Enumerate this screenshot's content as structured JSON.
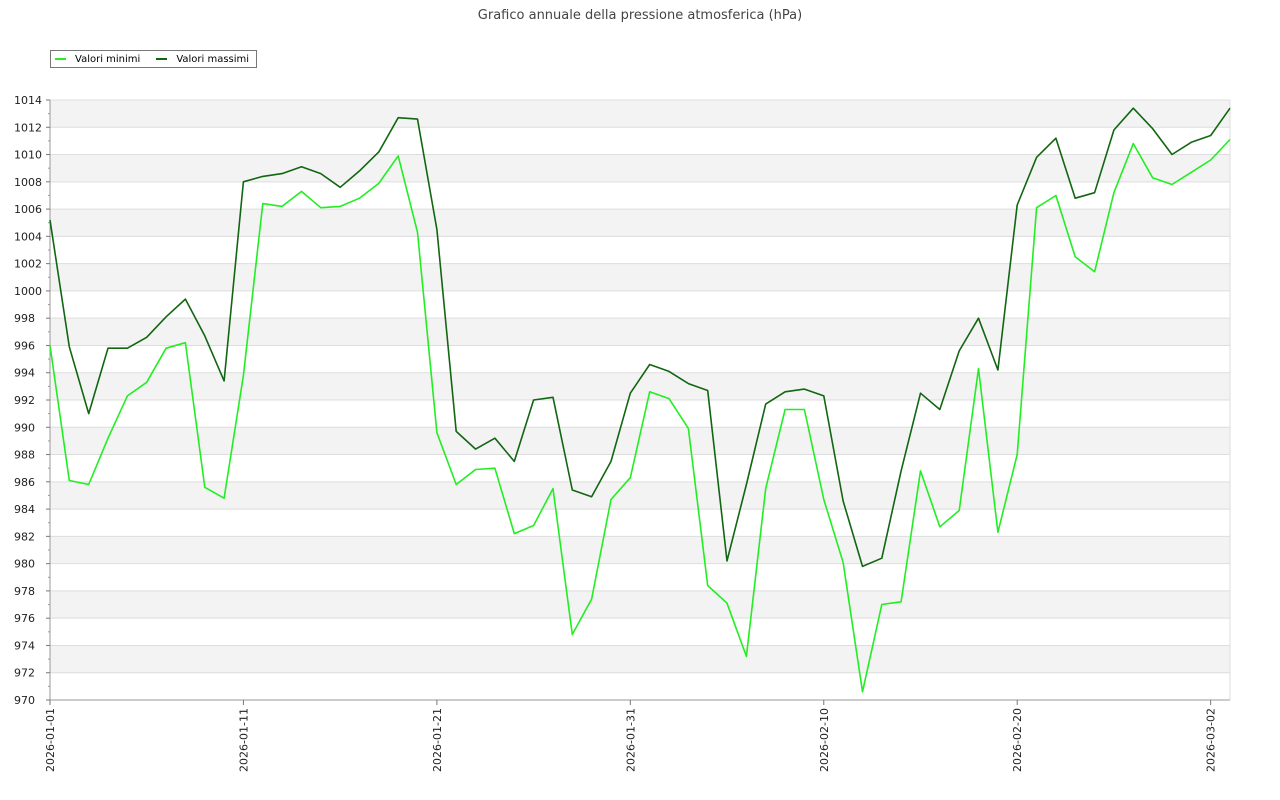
{
  "chart_data": {
    "type": "line",
    "title": "Grafico annuale della pressione atmosferica (hPa)",
    "xlabel": "",
    "ylabel": "",
    "ylim": [
      970,
      1014
    ],
    "yticks": [
      970,
      972,
      974,
      976,
      978,
      980,
      982,
      984,
      986,
      988,
      990,
      992,
      994,
      996,
      998,
      1000,
      1002,
      1004,
      1006,
      1008,
      1010,
      1012,
      1014
    ],
    "xlim": [
      "2026-01-01",
      "2026-03-03"
    ],
    "xticks": [
      "2026-01-01",
      "2026-01-11",
      "2026-01-21",
      "2026-01-31",
      "2026-02-10",
      "2026-02-20",
      "2026-03-02"
    ],
    "grid": "horizontal alternating bands",
    "legend_position": "top-left",
    "x": [
      "2026-01-01",
      "2026-01-02",
      "2026-01-03",
      "2026-01-04",
      "2026-01-05",
      "2026-01-06",
      "2026-01-07",
      "2026-01-08",
      "2026-01-09",
      "2026-01-10",
      "2026-01-11",
      "2026-01-12",
      "2026-01-13",
      "2026-01-14",
      "2026-01-15",
      "2026-01-16",
      "2026-01-17",
      "2026-01-18",
      "2026-01-19",
      "2026-01-20",
      "2026-01-21",
      "2026-01-22",
      "2026-01-23",
      "2026-01-24",
      "2026-01-25",
      "2026-01-26",
      "2026-01-27",
      "2026-01-28",
      "2026-01-29",
      "2026-01-30",
      "2026-01-31",
      "2026-02-01",
      "2026-02-02",
      "2026-02-03",
      "2026-02-04",
      "2026-02-05",
      "2026-02-06",
      "2026-02-07",
      "2026-02-08",
      "2026-02-09",
      "2026-02-10",
      "2026-02-11",
      "2026-02-12",
      "2026-02-13",
      "2026-02-14",
      "2026-02-15",
      "2026-02-16",
      "2026-02-17",
      "2026-02-18",
      "2026-02-19",
      "2026-02-20",
      "2026-02-21",
      "2026-02-22",
      "2026-02-23",
      "2026-02-24",
      "2026-02-25",
      "2026-02-26",
      "2026-02-27",
      "2026-02-28",
      "2026-03-01",
      "2026-03-02",
      "2026-03-03"
    ],
    "series": [
      {
        "name": "Valori minimi",
        "color": "#22ee22",
        "values": [
          996.0,
          986.1,
          985.8,
          989.2,
          992.3,
          993.3,
          995.8,
          996.2,
          985.6,
          984.8,
          993.8,
          1006.4,
          1006.2,
          1007.3,
          1006.1,
          1006.2,
          1006.8,
          1007.9,
          1009.9,
          1004.3,
          989.6,
          985.8,
          986.9,
          987.0,
          982.2,
          982.8,
          985.5,
          974.8,
          977.4,
          984.7,
          986.3,
          992.6,
          992.1,
          989.9,
          978.4,
          977.1,
          973.2,
          985.5,
          991.3,
          991.3,
          984.7,
          980.1,
          970.6,
          977.0,
          977.2,
          986.8,
          982.7,
          983.9,
          994.3,
          982.3,
          988.0,
          1006.1,
          1007.0,
          1002.5,
          1001.4,
          1007.2,
          1010.8,
          1008.3,
          1007.8,
          1008.7,
          1009.6,
          1011.1
        ]
      },
      {
        "name": "Valori massimi",
        "color": "#116611",
        "values": [
          1005.2,
          995.9,
          991.0,
          995.8,
          995.8,
          996.6,
          998.1,
          999.4,
          996.7,
          993.4,
          1008.0,
          1008.4,
          1008.6,
          1009.1,
          1008.6,
          1007.6,
          1008.8,
          1010.2,
          1012.7,
          1012.6,
          1004.5,
          989.7,
          988.4,
          989.2,
          987.5,
          992.0,
          992.2,
          985.4,
          984.9,
          987.5,
          992.5,
          994.6,
          994.1,
          993.2,
          992.7,
          980.2,
          985.8,
          991.7,
          992.6,
          992.8,
          992.3,
          984.6,
          979.8,
          980.4,
          986.8,
          992.5,
          991.3,
          995.6,
          998.0,
          994.2,
          1006.3,
          1009.8,
          1011.2,
          1006.8,
          1007.2,
          1011.8,
          1013.4,
          1011.9,
          1010.0,
          1010.9,
          1011.4,
          1013.4
        ]
      }
    ]
  }
}
